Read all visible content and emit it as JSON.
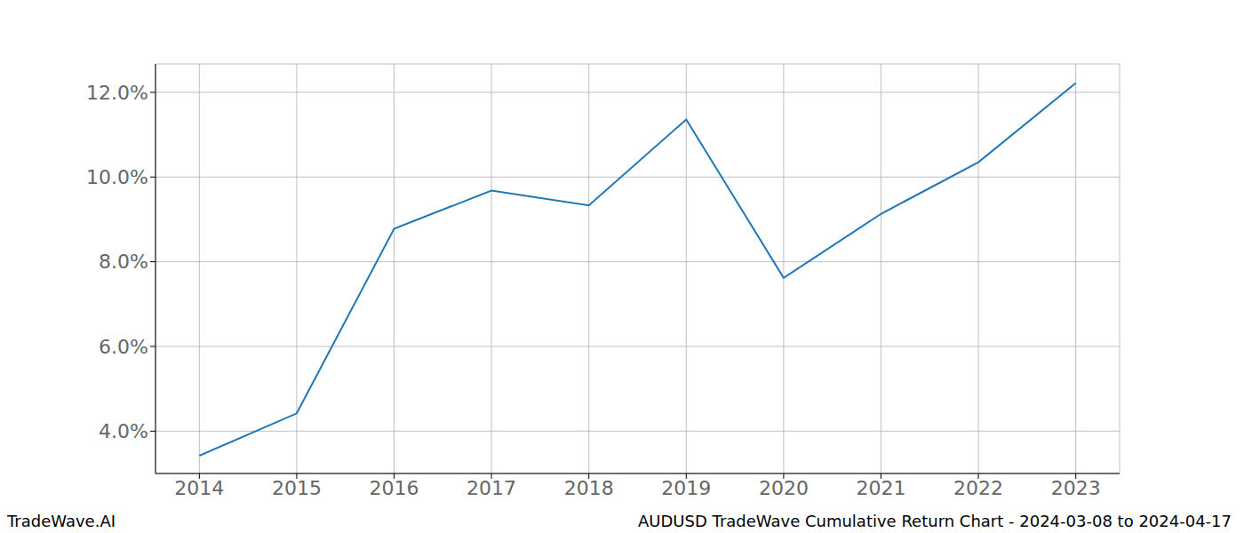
{
  "chart_data": {
    "type": "line",
    "title": "AUDUSD TradeWave Cumulative Return Chart - 2024-03-08 to 2024-04-17",
    "annotations": [
      "TradeWave.AI"
    ],
    "x": [
      2014,
      2015,
      2016,
      2017,
      2018,
      2019,
      2020,
      2021,
      2022,
      2023
    ],
    "values": [
      3.42,
      4.42,
      8.78,
      9.68,
      9.33,
      11.36,
      7.62,
      9.13,
      10.35,
      12.22
    ],
    "color": "#1f77b4",
    "xlim": [
      2013.55,
      2023.45
    ],
    "xticks": [
      2014,
      2015,
      2016,
      2017,
      2018,
      2019,
      2020,
      2021,
      2022,
      2023
    ],
    "ylim": [
      3.0,
      12.67
    ],
    "yticks": [
      {
        "value": 4,
        "label": "4.0%"
      },
      {
        "value": 6,
        "label": "6.0%"
      },
      {
        "value": 8,
        "label": "8.0%"
      },
      {
        "value": 10,
        "label": "10.0%"
      },
      {
        "value": 12,
        "label": "12.0%"
      }
    ],
    "grid": true
  }
}
